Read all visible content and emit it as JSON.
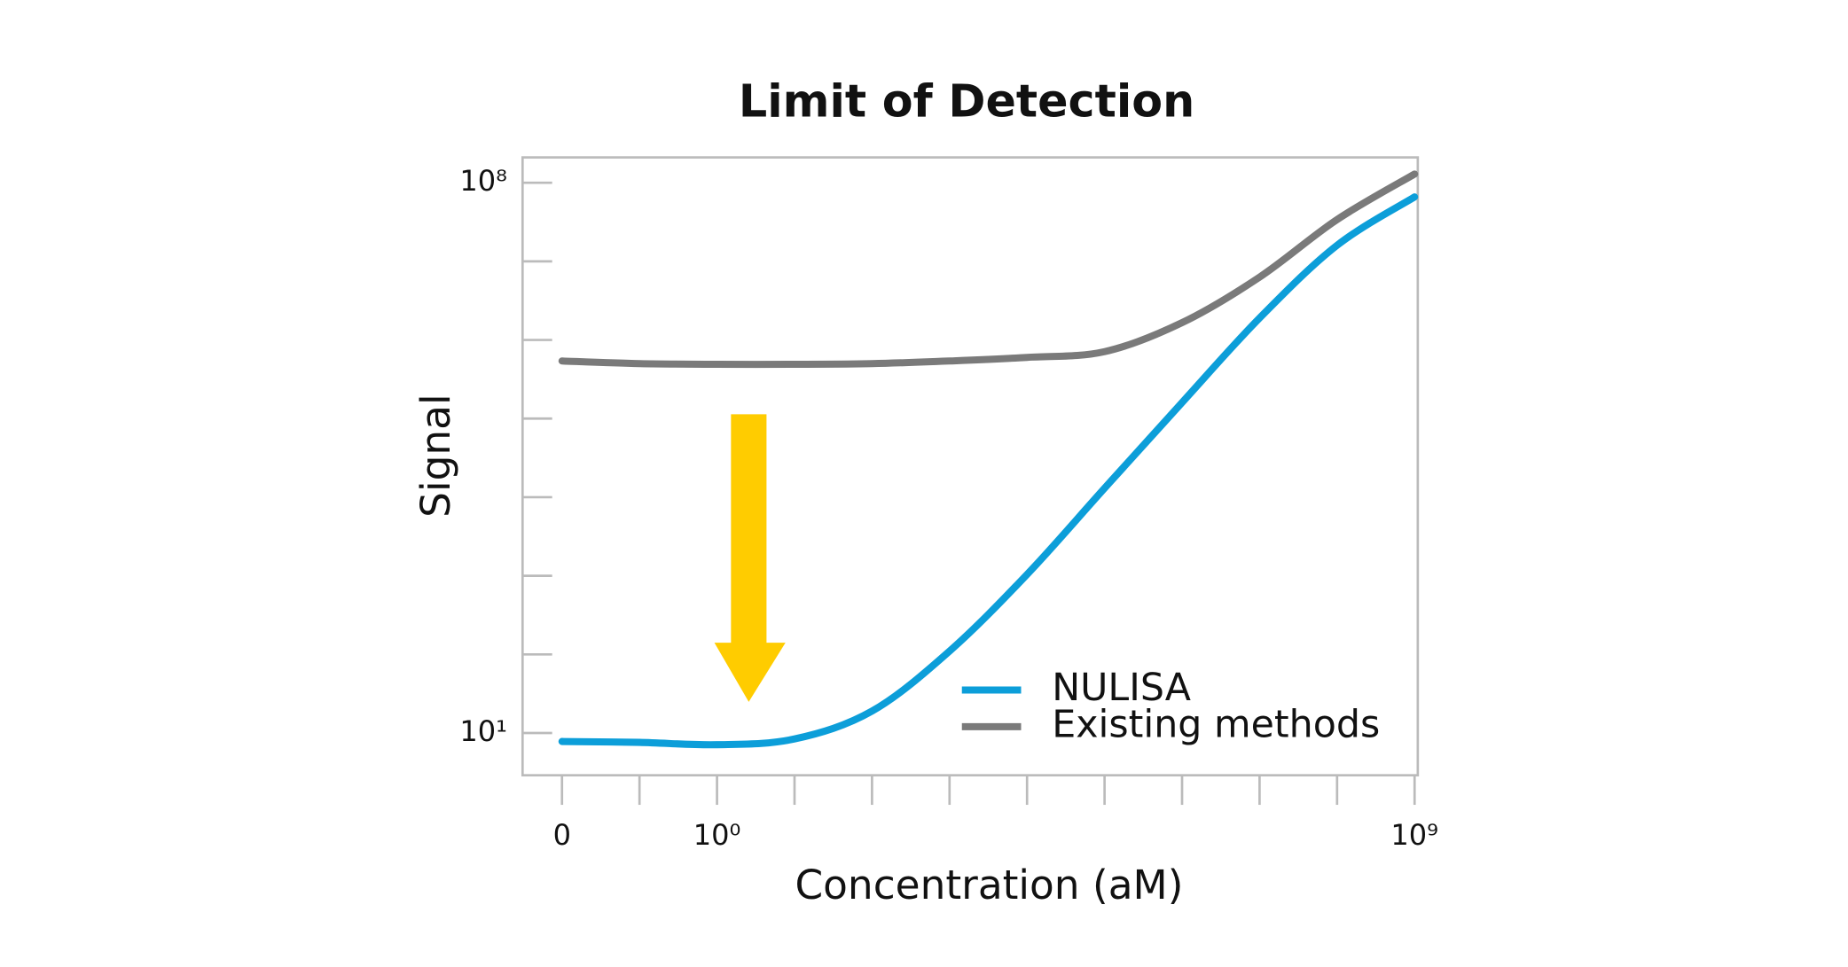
{
  "chart_data": {
    "type": "line",
    "title": "Limit of Detection",
    "x_label": "Concentration (aM)",
    "y_label": "Signal",
    "xscale": "log",
    "yscale": "log",
    "x": [
      0.01,
      0.1,
      1,
      10,
      100,
      1000,
      10000,
      100000,
      1000000,
      10000000,
      100000000,
      1000000000
    ],
    "series": [
      {
        "name": "NULISA",
        "color": "#0c9ed9",
        "values": [
          7.8,
          7.6,
          7.1,
          8.4,
          19,
          110,
          1040,
          13000,
          160000,
          1900000,
          16000000,
          66000000
        ]
      },
      {
        "name": "Existing methods",
        "color": "#7a7a7a",
        "values": [
          540000,
          500000,
          490000,
          490000,
          500000,
          540000,
          600000,
          710000,
          1660000,
          6300000,
          34000000,
          129000000
        ]
      }
    ],
    "xlim": [
      0.0031,
      1100000000
    ],
    "ylim": [
      2.9,
      210000000
    ],
    "xticks": [
      {
        "value": 0.01,
        "label": "0"
      },
      {
        "value": 1,
        "label": "10⁰"
      },
      {
        "value": 1000000000,
        "label": "10⁹"
      }
    ],
    "xticks_minor": [
      0.1,
      10,
      100,
      1000,
      10000,
      100000,
      1000000,
      10000000,
      100000000
    ],
    "yticks": [
      {
        "value": 10,
        "label": "10¹"
      },
      {
        "value": 100000000,
        "label": "10⁸"
      }
    ],
    "yticks_minor": [
      100,
      1000,
      10000,
      100000,
      1000000,
      10000000
    ],
    "legend": "lower right"
  }
}
